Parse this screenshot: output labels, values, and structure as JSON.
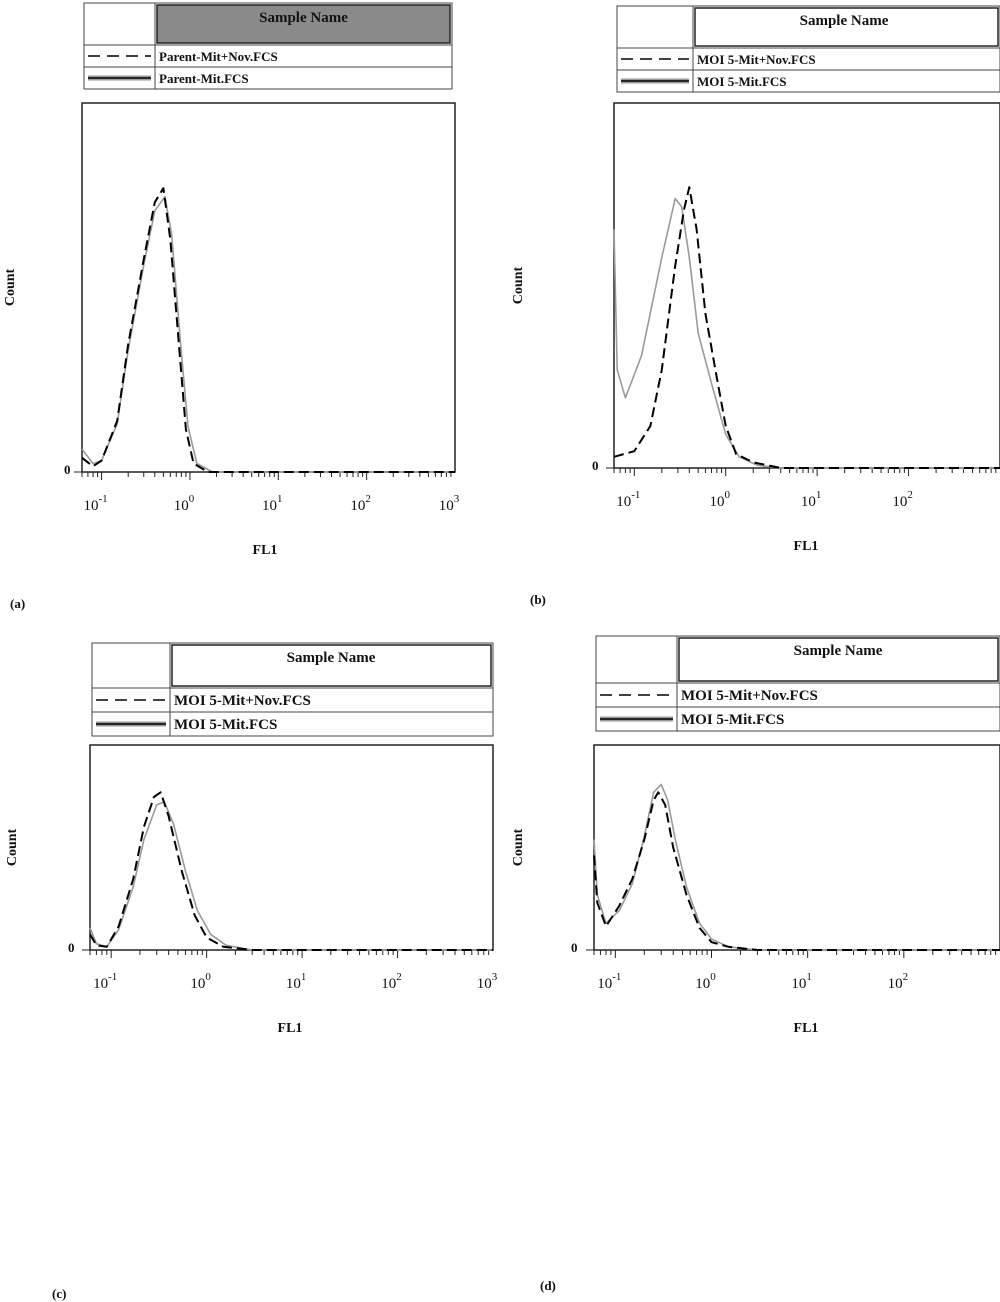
{
  "panels": [
    {
      "label": "(a)",
      "legend_header": "Sample Name",
      "chart_data": {
        "type": "line",
        "xlabel": "FL1",
        "ylabel": "Count",
        "xscale": "log",
        "xlim": [
          0.06,
          1000
        ],
        "ylim": [
          0,
          1.3
        ],
        "y_tick_labels": [
          "0"
        ],
        "x_tick_labels": [
          "10^-1",
          "10^0",
          "10^1",
          "10^2",
          "10^3"
        ],
        "legend_position": "top",
        "series": [
          {
            "name": "Parent-Mit+Nov.FCS",
            "style": "dashed",
            "color": "#000000",
            "points": [
              [
                0.06,
                0.05
              ],
              [
                0.08,
                0.02
              ],
              [
                0.1,
                0.04
              ],
              [
                0.15,
                0.18
              ],
              [
                0.2,
                0.45
              ],
              [
                0.3,
                0.75
              ],
              [
                0.4,
                0.95
              ],
              [
                0.5,
                1.0
              ],
              [
                0.6,
                0.82
              ],
              [
                0.75,
                0.45
              ],
              [
                0.9,
                0.15
              ],
              [
                1.1,
                0.03
              ],
              [
                1.6,
                0.0
              ],
              [
                1000,
                0.0
              ]
            ]
          },
          {
            "name": "Parent-Mit.FCS",
            "style": "solid",
            "color": "#9a9a9a",
            "points": [
              [
                0.06,
                0.08
              ],
              [
                0.08,
                0.03
              ],
              [
                0.1,
                0.04
              ],
              [
                0.15,
                0.17
              ],
              [
                0.2,
                0.43
              ],
              [
                0.3,
                0.73
              ],
              [
                0.4,
                0.92
              ],
              [
                0.52,
                0.97
              ],
              [
                0.62,
                0.84
              ],
              [
                0.78,
                0.46
              ],
              [
                0.95,
                0.16
              ],
              [
                1.2,
                0.03
              ],
              [
                1.8,
                0.0
              ],
              [
                1000,
                0.0
              ]
            ]
          }
        ]
      }
    },
    {
      "label": "(b)",
      "legend_header": "Sample Name",
      "chart_data": {
        "type": "line",
        "xlabel": "FL1",
        "ylabel": "Count",
        "xscale": "log",
        "xlim": [
          0.06,
          1000
        ],
        "ylim": [
          0,
          1.3
        ],
        "y_tick_labels": [
          "0"
        ],
        "x_tick_labels": [
          "10^-1",
          "10^0",
          "10^1",
          "10^2",
          "10^3"
        ],
        "legend_position": "top",
        "series": [
          {
            "name": "MOI 5-Mit+Nov.FCS",
            "style": "dashed",
            "color": "#000000",
            "points": [
              [
                0.06,
                0.04
              ],
              [
                0.1,
                0.06
              ],
              [
                0.15,
                0.15
              ],
              [
                0.2,
                0.35
              ],
              [
                0.28,
                0.72
              ],
              [
                0.35,
                0.92
              ],
              [
                0.4,
                1.0
              ],
              [
                0.48,
                0.85
              ],
              [
                0.6,
                0.55
              ],
              [
                0.8,
                0.32
              ],
              [
                1.0,
                0.15
              ],
              [
                1.3,
                0.05
              ],
              [
                2,
                0.02
              ],
              [
                4,
                0.0
              ],
              [
                1000,
                0.0
              ]
            ]
          },
          {
            "name": "MOI 5-Mit.FCS",
            "style": "solid",
            "color": "#9a9a9a",
            "points": [
              [
                0.06,
                0.85
              ],
              [
                0.065,
                0.35
              ],
              [
                0.08,
                0.25
              ],
              [
                0.12,
                0.4
              ],
              [
                0.2,
                0.75
              ],
              [
                0.28,
                0.96
              ],
              [
                0.33,
                0.93
              ],
              [
                0.4,
                0.75
              ],
              [
                0.5,
                0.48
              ],
              [
                0.7,
                0.3
              ],
              [
                1.0,
                0.12
              ],
              [
                1.4,
                0.04
              ],
              [
                2.2,
                0.01
              ],
              [
                4,
                0.0
              ],
              [
                1000,
                0.0
              ]
            ]
          }
        ]
      }
    },
    {
      "label": "(c)",
      "legend_header": "Sample Name",
      "chart_data": {
        "type": "line",
        "xlabel": "FL1",
        "ylabel": "Count",
        "xscale": "log",
        "xlim": [
          0.06,
          1000
        ],
        "ylim": [
          0,
          1.3
        ],
        "y_tick_labels": [
          "0"
        ],
        "x_tick_labels": [
          "10^-1",
          "10^0",
          "10^1",
          "10^2",
          "10^3"
        ],
        "legend_position": "top",
        "series": [
          {
            "name": "MOI 5-Mit+Nov.FCS",
            "style": "dashed",
            "color": "#000000",
            "points": [
              [
                0.06,
                0.1
              ],
              [
                0.07,
                0.03
              ],
              [
                0.09,
                0.02
              ],
              [
                0.12,
                0.15
              ],
              [
                0.17,
                0.45
              ],
              [
                0.22,
                0.78
              ],
              [
                0.28,
                0.97
              ],
              [
                0.33,
                1.0
              ],
              [
                0.4,
                0.85
              ],
              [
                0.55,
                0.5
              ],
              [
                0.75,
                0.22
              ],
              [
                1.0,
                0.08
              ],
              [
                1.5,
                0.02
              ],
              [
                3,
                0.0
              ],
              [
                1000,
                0.0
              ]
            ]
          },
          {
            "name": "MOI 5-Mit.FCS",
            "style": "solid",
            "color": "#9a9a9a",
            "points": [
              [
                0.06,
                0.14
              ],
              [
                0.07,
                0.04
              ],
              [
                0.09,
                0.02
              ],
              [
                0.12,
                0.13
              ],
              [
                0.17,
                0.4
              ],
              [
                0.22,
                0.7
              ],
              [
                0.3,
                0.92
              ],
              [
                0.36,
                0.94
              ],
              [
                0.45,
                0.8
              ],
              [
                0.6,
                0.5
              ],
              [
                0.8,
                0.25
              ],
              [
                1.1,
                0.1
              ],
              [
                1.6,
                0.03
              ],
              [
                3,
                0.0
              ],
              [
                1000,
                0.0
              ]
            ]
          }
        ]
      }
    },
    {
      "label": "(d)",
      "legend_header": "Sample Name",
      "chart_data": {
        "type": "line",
        "xlabel": "FL1",
        "ylabel": "Count",
        "xscale": "log",
        "xlim": [
          0.06,
          1000
        ],
        "ylim": [
          0,
          1.3
        ],
        "y_tick_labels": [
          "0"
        ],
        "x_tick_labels": [
          "10^-1",
          "10^0",
          "10^1",
          "10^2",
          "10^3"
        ],
        "legend_position": "top",
        "series": [
          {
            "name": "MOI 5-Mit+Nov.FCS",
            "style": "dashed",
            "color": "#000000",
            "points": [
              [
                0.06,
                0.6
              ],
              [
                0.065,
                0.3
              ],
              [
                0.08,
                0.15
              ],
              [
                0.11,
                0.28
              ],
              [
                0.15,
                0.45
              ],
              [
                0.2,
                0.7
              ],
              [
                0.25,
                0.95
              ],
              [
                0.28,
                1.0
              ],
              [
                0.33,
                0.92
              ],
              [
                0.4,
                0.65
              ],
              [
                0.55,
                0.35
              ],
              [
                0.75,
                0.14
              ],
              [
                1.0,
                0.05
              ],
              [
                1.5,
                0.02
              ],
              [
                3,
                0.0
              ],
              [
                1000,
                0.0
              ]
            ]
          },
          {
            "name": "MOI 5-Mit.FCS",
            "style": "solid",
            "color": "#9a9a9a",
            "points": [
              [
                0.06,
                0.7
              ],
              [
                0.065,
                0.35
              ],
              [
                0.08,
                0.17
              ],
              [
                0.11,
                0.25
              ],
              [
                0.15,
                0.42
              ],
              [
                0.2,
                0.72
              ],
              [
                0.25,
                1.0
              ],
              [
                0.3,
                1.05
              ],
              [
                0.35,
                0.95
              ],
              [
                0.42,
                0.7
              ],
              [
                0.55,
                0.4
              ],
              [
                0.75,
                0.17
              ],
              [
                1.0,
                0.07
              ],
              [
                1.5,
                0.02
              ],
              [
                3,
                0.0
              ],
              [
                1000,
                0.0
              ]
            ]
          }
        ]
      }
    }
  ]
}
